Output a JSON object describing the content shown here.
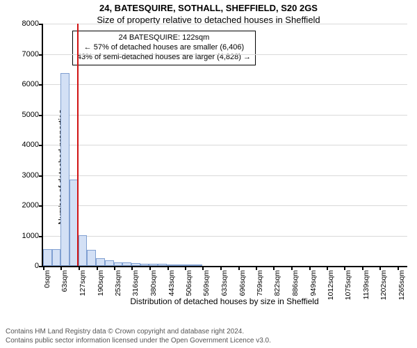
{
  "title": {
    "line1": "24, BATESQUIRE, SOTHALL, SHEFFIELD, S20 2GS",
    "line2": "Size of property relative to detached houses in Sheffield"
  },
  "axes": {
    "ylabel": "Number of detached properties",
    "xlabel": "Distribution of detached houses by size in Sheffield",
    "ylim": [
      0,
      8000
    ],
    "ytick_step": 1000,
    "grid_color": "#d9d9d9",
    "text_color": "#000000"
  },
  "histogram": {
    "type": "histogram",
    "xtick_labels": [
      "0sqm",
      "63sqm",
      "127sqm",
      "190sqm",
      "253sqm",
      "316sqm",
      "380sqm",
      "443sqm",
      "506sqm",
      "569sqm",
      "633sqm",
      "696sqm",
      "759sqm",
      "822sqm",
      "886sqm",
      "949sqm",
      "1012sqm",
      "1075sqm",
      "1139sqm",
      "1202sqm",
      "1265sqm"
    ],
    "xtick_values": [
      0,
      63,
      127,
      190,
      253,
      316,
      380,
      443,
      506,
      569,
      633,
      696,
      759,
      822,
      886,
      949,
      1012,
      1075,
      1139,
      1202,
      1265
    ],
    "xmax": 1300,
    "bin_width": 31.5,
    "bar_fill": "#d3e0f5",
    "bar_stroke": "#7f9fd1",
    "values": [
      560,
      560,
      6360,
      2850,
      1020,
      520,
      260,
      180,
      120,
      110,
      90,
      80,
      75,
      60,
      55,
      50,
      40,
      30
    ]
  },
  "marker": {
    "x": 122,
    "color": "#d11313"
  },
  "annotation": {
    "line1": "24 BATESQUIRE: 122sqm",
    "line2": "← 57% of detached houses are smaller (6,406)",
    "line3": "43% of semi-detached houses are larger (4,828) →"
  },
  "footer": {
    "line1": "Contains HM Land Registry data © Crown copyright and database right 2024.",
    "line2": "Contains public sector information licensed under the Open Government Licence v3.0."
  }
}
